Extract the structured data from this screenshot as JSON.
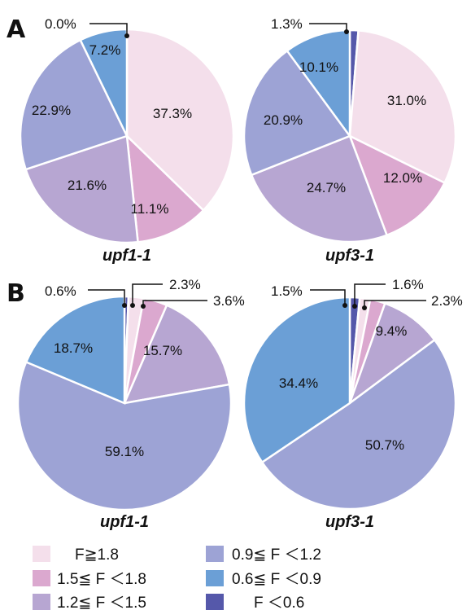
{
  "panel_letters": [
    "A",
    "B"
  ],
  "legend": [
    {
      "label": "F≧1.8",
      "color": "#f4dfeb"
    },
    {
      "label": "1.5≦ F ＜1.8",
      "color": "#dba8cf"
    },
    {
      "label": "1.2≦ F ＜1.5",
      "color": "#b7a6d2"
    },
    {
      "label": "0.9≦ F ＜1.2",
      "color": "#9da3d5"
    },
    {
      "label": "0.6≦ F ＜0.9",
      "color": "#6b9fd6"
    },
    {
      "label": "F ＜0.6",
      "color": "#5558aa"
    }
  ],
  "chart_data": [
    {
      "type": "pie",
      "panel": "A",
      "title": "upf1-1",
      "values": [
        37.3,
        11.1,
        21.6,
        22.9,
        7.2,
        0.0
      ],
      "labels": [
        "37.3%",
        "11.1%",
        "21.6%",
        "22.9%",
        "7.2%",
        "0.0%"
      ]
    },
    {
      "type": "pie",
      "panel": "A",
      "title": "upf3-1",
      "values": [
        31.0,
        12.0,
        24.7,
        20.9,
        10.1,
        1.3
      ],
      "labels": [
        "31.0%",
        "12.0%",
        "24.7%",
        "20.9%",
        "10.1%",
        "1.3%"
      ]
    },
    {
      "type": "pie",
      "panel": "B",
      "title": "upf1-1",
      "values": [
        2.3,
        3.6,
        15.7,
        59.1,
        18.7,
        0.6
      ],
      "labels": [
        "2.3%",
        "3.6%",
        "15.7%",
        "59.1%",
        "18.7%",
        "0.6%"
      ]
    },
    {
      "type": "pie",
      "panel": "B",
      "title": "upf3-1",
      "values": [
        1.6,
        2.3,
        9.4,
        50.7,
        34.4,
        1.5
      ],
      "labels": [
        "1.6%",
        "2.3%",
        "9.4%",
        "50.7%",
        "34.4%",
        "1.5%"
      ]
    }
  ]
}
